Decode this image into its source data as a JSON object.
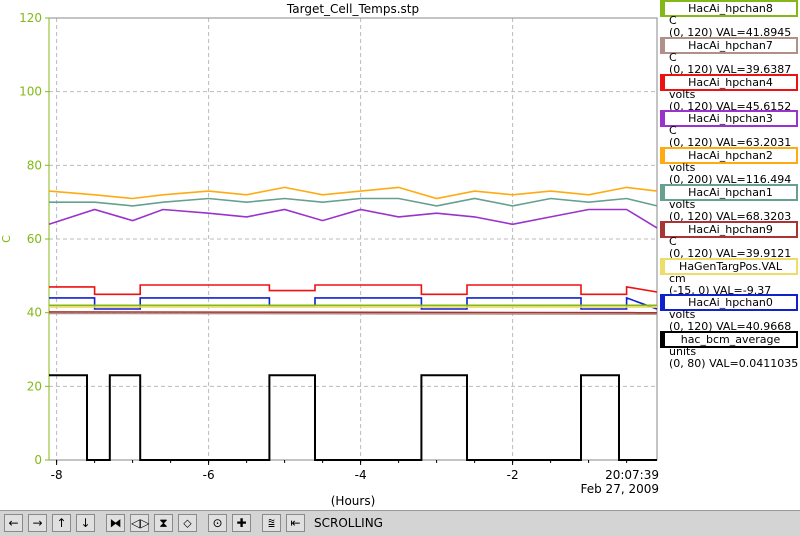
{
  "chart_data": {
    "type": "line",
    "title": "Target_Cell_Temps.stp",
    "xlabel": "(Hours)",
    "ylabel": "C",
    "xlim": [
      -8.1,
      -0.1
    ],
    "ylim": [
      0,
      120
    ],
    "x_ticks": [
      "-8",
      "-6",
      "-4",
      "-2"
    ],
    "y_ticks": [
      "0",
      "20",
      "40",
      "60",
      "80",
      "100",
      "120"
    ],
    "grid": true,
    "time_label": "20:07:39",
    "date_label": "Feb 27, 2009",
    "series": [
      {
        "name": "HacAi_hpchan8",
        "color": "#84b818",
        "unit": "C",
        "range": "(0, 120)",
        "val": "VAL=41.8945",
        "x": [
          -8.1,
          -0.1
        ],
        "y": [
          42,
          42
        ]
      },
      {
        "name": "HacAi_hpchan7",
        "color": "#b09088",
        "unit": "C",
        "range": "(0, 120)",
        "val": "VAL=39.6387",
        "x": [
          -8.1,
          -0.1
        ],
        "y": [
          39.8,
          39.6
        ]
      },
      {
        "name": "HacAi_hpchan4",
        "color": "#ee1111",
        "unit": "volts",
        "range": "(0, 120)",
        "val": "VAL=45.6152",
        "x": [
          -8.1,
          -7.5,
          -7.5,
          -6.9,
          -6.9,
          -5.2,
          -5.2,
          -4.6,
          -4.6,
          -3.2,
          -3.2,
          -2.6,
          -2.6,
          -1.1,
          -1.1,
          -0.5,
          -0.5,
          -0.1
        ],
        "y": [
          47,
          47,
          45,
          45,
          47.5,
          47.5,
          46,
          46,
          47.5,
          47.5,
          45,
          45,
          47.5,
          47.5,
          45,
          45,
          47,
          45.6
        ]
      },
      {
        "name": "HacAi_hpchan3",
        "color": "#9933cc",
        "unit": "C",
        "range": "(0, 120)",
        "val": "VAL=63.2031",
        "x": [
          -8.1,
          -7.5,
          -7.0,
          -6.6,
          -6.0,
          -5.5,
          -5.0,
          -4.5,
          -4.0,
          -3.5,
          -3.0,
          -2.5,
          -2.0,
          -1.5,
          -1.0,
          -0.5,
          -0.1
        ],
        "y": [
          64,
          68,
          65,
          68,
          67,
          66,
          68,
          65,
          68,
          66,
          67,
          66,
          64,
          66,
          68,
          68,
          63
        ]
      },
      {
        "name": "HacAi_hpchan2",
        "color": "#ffaa11",
        "unit": "volts",
        "range": "(0, 200)",
        "val": "VAL=116.494",
        "x": [
          -8.1,
          -7.5,
          -7.0,
          -6.6,
          -6.0,
          -5.5,
          -5.0,
          -4.5,
          -4.0,
          -3.5,
          -3.0,
          -2.5,
          -2.0,
          -1.5,
          -1.0,
          -0.5,
          -0.1
        ],
        "y": [
          73,
          72,
          71,
          72,
          73,
          72,
          74,
          72,
          73,
          74,
          71,
          73,
          72,
          73,
          72,
          74,
          73
        ]
      },
      {
        "name": "HacAi_hpchan1",
        "color": "#66a090",
        "unit": "volts",
        "range": "(0, 120)",
        "val": "VAL=68.3203",
        "x": [
          -8.1,
          -7.5,
          -7.0,
          -6.6,
          -6.0,
          -5.5,
          -5.0,
          -4.5,
          -4.0,
          -3.5,
          -3.0,
          -2.5,
          -2.0,
          -1.5,
          -1.0,
          -0.5,
          -0.1
        ],
        "y": [
          70,
          70,
          69,
          70,
          71,
          70,
          71,
          70,
          71,
          71,
          69,
          71,
          69,
          71,
          70,
          71,
          69
        ]
      },
      {
        "name": "HacAi_hpchan9",
        "color": "#aa3333",
        "unit": "C",
        "range": "(0, 120)",
        "val": "VAL=39.9121",
        "x": [
          -8.1,
          -0.1
        ],
        "y": [
          40.2,
          40
        ]
      },
      {
        "name": "HaGenTargPos.VAL",
        "color": "#eedd66",
        "unit": "cm",
        "range": "(-15, 0)",
        "val": "VAL=-9.37",
        "x": [
          -8.1,
          -0.1
        ],
        "y": [
          41.5,
          41.5
        ]
      },
      {
        "name": "HacAi_hpchan0",
        "color": "#1122cc",
        "unit": "volts",
        "range": "(0, 120)",
        "val": "VAL=40.9668",
        "x": [
          -8.1,
          -7.5,
          -7.5,
          -6.9,
          -6.9,
          -5.2,
          -5.2,
          -4.6,
          -4.6,
          -3.2,
          -3.2,
          -2.6,
          -2.6,
          -1.1,
          -1.1,
          -0.5,
          -0.5,
          -0.1
        ],
        "y": [
          44,
          44,
          41,
          41,
          44,
          44,
          42,
          42,
          44,
          44,
          41,
          41,
          44,
          44,
          41,
          41,
          44,
          41
        ]
      },
      {
        "name": "hac_bcm_average",
        "color": "#000000",
        "unit": "units",
        "range": "(0, 80)",
        "val": "VAL=0.0411035",
        "x": [
          -8.1,
          -7.6,
          -7.6,
          -7.3,
          -7.3,
          -6.9,
          -6.9,
          -5.2,
          -5.2,
          -4.6,
          -4.6,
          -3.2,
          -3.2,
          -2.6,
          -2.6,
          -1.1,
          -1.1,
          -0.6,
          -0.6,
          -0.1
        ],
        "y": [
          23,
          23,
          0,
          0,
          23,
          23,
          0,
          0,
          23,
          23,
          0,
          0,
          23,
          23,
          0,
          0,
          23,
          23,
          0,
          0
        ]
      }
    ]
  },
  "toolbar": {
    "buttons": [
      {
        "name": "scroll-left-button",
        "glyph": "←"
      },
      {
        "name": "scroll-right-button",
        "glyph": "→"
      },
      {
        "name": "scroll-up-button",
        "glyph": "↑"
      },
      {
        "name": "scroll-down-button",
        "glyph": "↓"
      },
      {
        "name": "zoom-in-x-button",
        "glyph": "⧓"
      },
      {
        "name": "zoom-out-x-button",
        "glyph": "◁▷"
      },
      {
        "name": "zoom-in-y-button",
        "glyph": "⧗"
      },
      {
        "name": "zoom-out-y-button",
        "glyph": "⬦"
      },
      {
        "name": "stop-button",
        "glyph": "⊙"
      },
      {
        "name": "add-button",
        "glyph": "✚"
      },
      {
        "name": "autoscale-button",
        "glyph": "⩰"
      },
      {
        "name": "back-to-now-button",
        "glyph": "⇤"
      }
    ],
    "status_text": "SCROLLING"
  }
}
